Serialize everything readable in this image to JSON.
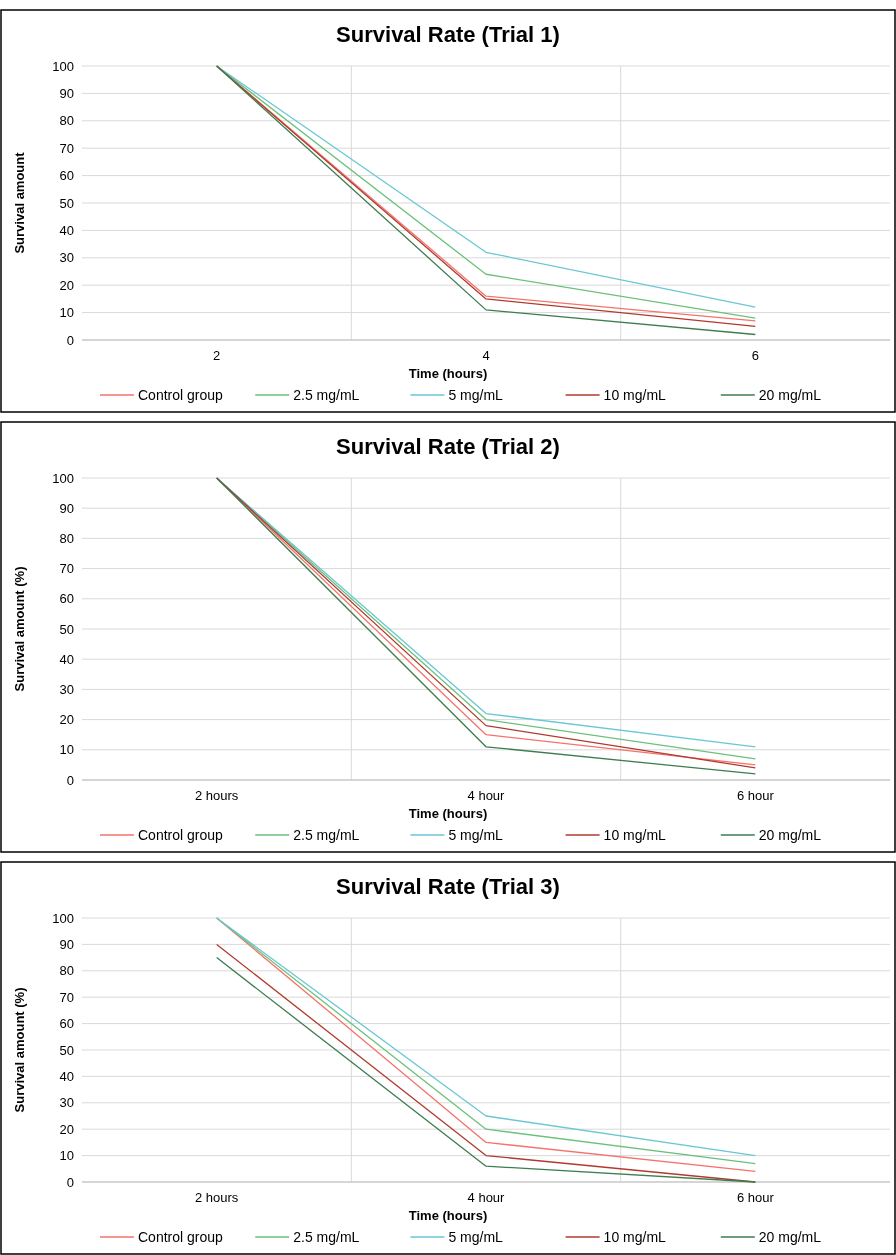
{
  "chart_data": [
    {
      "type": "line",
      "title": "Survival Rate (Trial 1)",
      "xlabel": "Time (hours)",
      "ylabel": "Survival amount",
      "categories": [
        "2",
        "4",
        "6"
      ],
      "ylim": [
        0,
        100
      ],
      "yticks": [
        0,
        10,
        20,
        30,
        40,
        50,
        60,
        70,
        80,
        90,
        100
      ],
      "grid": true,
      "legend": "bottom",
      "series": [
        {
          "name": "Control group",
          "color": "#f4736b",
          "values": [
            100,
            16,
            7
          ]
        },
        {
          "name": "2.5 mg/mL",
          "color": "#6cc17a",
          "values": [
            100,
            24,
            8
          ]
        },
        {
          "name": "5 mg/mL",
          "color": "#69c7d4",
          "values": [
            100,
            32,
            12
          ]
        },
        {
          "name": "10 mg/mL",
          "color": "#b03a2e",
          "values": [
            100,
            15,
            5
          ]
        },
        {
          "name": "20 mg/mL",
          "color": "#3e7d4f",
          "values": [
            100,
            11,
            2
          ]
        }
      ]
    },
    {
      "type": "line",
      "title": "Survival Rate (Trial 2)",
      "xlabel": "Time (hours)",
      "ylabel": "Survival amount (%)",
      "categories": [
        "2 hours",
        "4 hour",
        "6 hour"
      ],
      "ylim": [
        0,
        100
      ],
      "yticks": [
        0,
        10,
        20,
        30,
        40,
        50,
        60,
        70,
        80,
        90,
        100
      ],
      "grid": true,
      "legend": "bottom",
      "series": [
        {
          "name": "Control group",
          "color": "#f4736b",
          "values": [
            100,
            15,
            5
          ]
        },
        {
          "name": "2.5 mg/mL",
          "color": "#6cc17a",
          "values": [
            100,
            20,
            7
          ]
        },
        {
          "name": "5 mg/mL",
          "color": "#69c7d4",
          "values": [
            100,
            22,
            11
          ]
        },
        {
          "name": "10 mg/mL",
          "color": "#b03a2e",
          "values": [
            100,
            18,
            4
          ]
        },
        {
          "name": "20 mg/mL",
          "color": "#3e7d4f",
          "values": [
            100,
            11,
            2
          ]
        }
      ]
    },
    {
      "type": "line",
      "title": "Survival Rate (Trial 3)",
      "xlabel": "Time (hours)",
      "ylabel": "Survival amount (%)",
      "categories": [
        "2 hours",
        "4 hour",
        "6 hour"
      ],
      "ylim": [
        0,
        100
      ],
      "yticks": [
        0,
        10,
        20,
        30,
        40,
        50,
        60,
        70,
        80,
        90,
        100
      ],
      "grid": true,
      "legend": "bottom",
      "series": [
        {
          "name": "Control group",
          "color": "#f4736b",
          "values": [
            100,
            15,
            4
          ]
        },
        {
          "name": "2.5 mg/mL",
          "color": "#6cc17a",
          "values": [
            100,
            20,
            7
          ]
        },
        {
          "name": "5 mg/mL",
          "color": "#69c7d4",
          "values": [
            100,
            25,
            10
          ]
        },
        {
          "name": "10 mg/mL",
          "color": "#b03a2e",
          "values": [
            90,
            10,
            0
          ]
        },
        {
          "name": "20 mg/mL",
          "color": "#3e7d4f",
          "values": [
            85,
            6,
            0
          ]
        }
      ]
    }
  ]
}
